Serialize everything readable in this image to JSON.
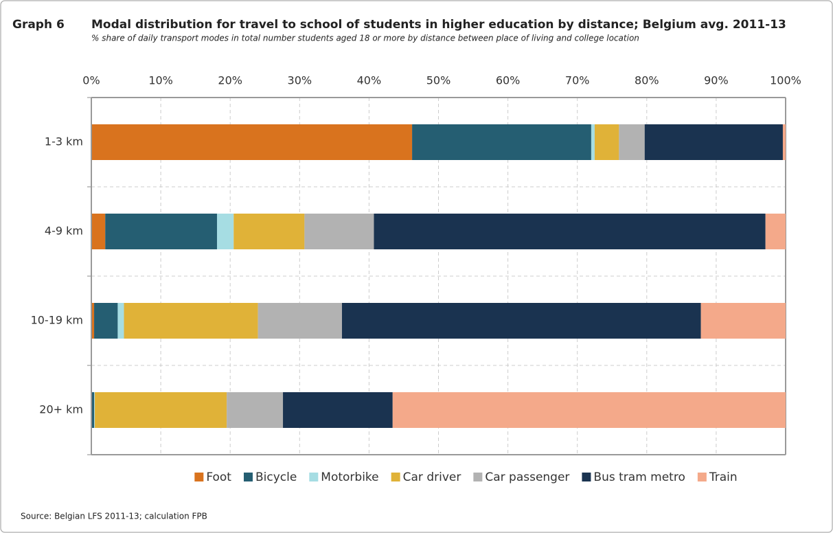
{
  "chart_data": {
    "type": "stacked-bar-horizontal",
    "label": "Graph 6",
    "title": "Modal distribution for travel to school of students in higher education by distance; Belgium avg. 2011-13",
    "subtitle": "% share of daily transport modes in total number students aged 18 or more by distance between place of living and college location",
    "source": "Source: Belgian LFS 2011-13; calculation FPB",
    "categories": [
      "1-3 km",
      "4-9 km",
      "10-19 km",
      "20+ km"
    ],
    "series": [
      {
        "name": "Foot",
        "color": "#d9731e",
        "values": [
          46.2,
          2.0,
          0.4,
          0.1
        ]
      },
      {
        "name": "Bicycle",
        "color": "#255e72",
        "values": [
          25.8,
          16.1,
          3.4,
          0.3
        ]
      },
      {
        "name": "Motorbike",
        "color": "#a6dde3",
        "values": [
          0.5,
          2.4,
          0.9,
          0.1
        ]
      },
      {
        "name": "Car driver",
        "color": "#e0b238",
        "values": [
          3.5,
          10.2,
          19.3,
          19.0
        ]
      },
      {
        "name": "Car passenger",
        "color": "#b2b2b2",
        "values": [
          3.7,
          10.0,
          12.1,
          8.1
        ]
      },
      {
        "name": "Bus tram metro",
        "color": "#1a3350",
        "values": [
          19.9,
          56.4,
          51.7,
          15.8
        ]
      },
      {
        "name": "Train",
        "color": "#f4a98a",
        "values": [
          0.4,
          2.9,
          12.2,
          56.6
        ]
      }
    ],
    "xlim": [
      0,
      100
    ],
    "xticks": [
      {
        "value": 0,
        "label": "0%"
      },
      {
        "value": 10,
        "label": "10%"
      },
      {
        "value": 20,
        "label": "20%"
      },
      {
        "value": 30,
        "label": "30%"
      },
      {
        "value": 40,
        "label": "40%"
      },
      {
        "value": 50,
        "label": "50%"
      },
      {
        "value": 60,
        "label": "60%"
      },
      {
        "value": 70,
        "label": "70%"
      },
      {
        "value": 80,
        "label": "80%"
      },
      {
        "value": 90,
        "label": "90%"
      },
      {
        "value": 100,
        "label": "100%"
      }
    ],
    "grid": true,
    "legend": "bottom"
  }
}
